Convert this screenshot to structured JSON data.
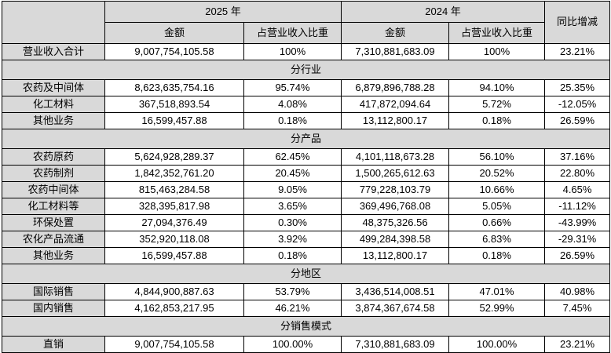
{
  "table": {
    "header": {
      "year_2025": "2025 年",
      "year_2024": "2024 年",
      "amount": "金额",
      "ratio": "占营业收入比重",
      "yoy": "同比增减"
    },
    "rows": [
      {
        "type": "data",
        "label": "营业收入合计",
        "cells": [
          "9,007,754,105.58",
          "100%",
          "7,310,881,683.09",
          "100%",
          "23.21%"
        ]
      },
      {
        "type": "section",
        "label": "分行业"
      },
      {
        "type": "data",
        "label": "农药及中间体",
        "cells": [
          "8,623,635,754.16",
          "95.74%",
          "6,879,896,788.28",
          "94.10%",
          "25.35%"
        ]
      },
      {
        "type": "data",
        "label": "化工材料",
        "cells": [
          "367,518,893.54",
          "4.08%",
          "417,872,094.64",
          "5.72%",
          "-12.05%"
        ]
      },
      {
        "type": "data",
        "label": "其他业务",
        "cells": [
          "16,599,457.88",
          "0.18%",
          "13,112,800.17",
          "0.18%",
          "26.59%"
        ]
      },
      {
        "type": "section",
        "label": "分产品"
      },
      {
        "type": "data",
        "label": "农药原药",
        "cells": [
          "5,624,928,289.37",
          "62.45%",
          "4,101,118,673.28",
          "56.10%",
          "37.16%"
        ]
      },
      {
        "type": "data",
        "label": "农药制剂",
        "cells": [
          "1,842,352,761.20",
          "20.45%",
          "1,500,265,612.63",
          "20.52%",
          "22.80%"
        ]
      },
      {
        "type": "data",
        "label": "农药中间体",
        "cells": [
          "815,463,284.58",
          "9.05%",
          "779,228,103.79",
          "10.66%",
          "4.65%"
        ]
      },
      {
        "type": "data",
        "label": "化工材料等",
        "cells": [
          "328,395,817.98",
          "3.65%",
          "369,496,768.08",
          "5.05%",
          "-11.12%"
        ]
      },
      {
        "type": "data",
        "label": "环保处置",
        "cells": [
          "27,094,376.49",
          "0.30%",
          "48,375,326.56",
          "0.66%",
          "-43.99%"
        ]
      },
      {
        "type": "data",
        "label": "农化产品流通",
        "cells": [
          "352,920,118.08",
          "3.92%",
          "499,284,398.58",
          "6.83%",
          "-29.31%"
        ]
      },
      {
        "type": "data",
        "label": "其他业务",
        "cells": [
          "16,599,457.88",
          "0.18%",
          "13,112,800.17",
          "0.18%",
          "26.59%"
        ]
      },
      {
        "type": "section",
        "label": "分地区"
      },
      {
        "type": "data",
        "label": "国际销售",
        "cells": [
          "4,844,900,887.63",
          "53.79%",
          "3,436,514,008.51",
          "47.01%",
          "40.98%"
        ]
      },
      {
        "type": "data",
        "label": "国内销售",
        "cells": [
          "4,162,853,217.95",
          "46.21%",
          "3,874,367,674.58",
          "52.99%",
          "7.45%"
        ]
      },
      {
        "type": "section",
        "label": "分销售模式"
      },
      {
        "type": "data",
        "label": "直销",
        "cells": [
          "9,007,754,105.58",
          "100.00%",
          "7,310,881,683.09",
          "100.00%",
          "23.21%"
        ]
      }
    ],
    "colors": {
      "header_bg": "#d9d9d9",
      "row_label_bg": "#d9d9d9",
      "border": "#000000",
      "cell_bg": "#ffffff"
    }
  }
}
